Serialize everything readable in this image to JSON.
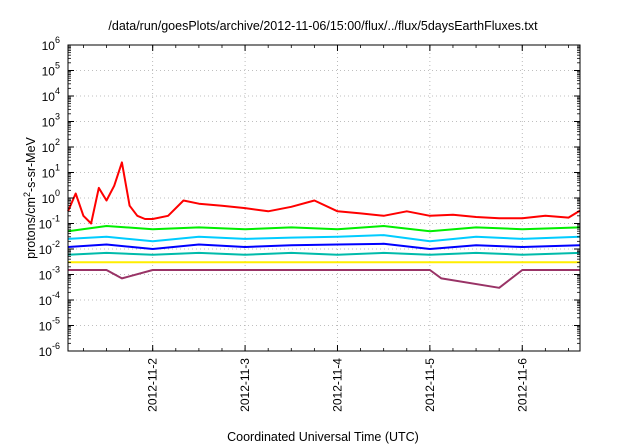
{
  "chart_data": {
    "type": "line",
    "title": "/data/run/goesPlots/archive/2012-11-06/15:00/flux/../flux/5daysEarthFluxes.txt",
    "xlabel": "Coordinated Universal Time (UTC)",
    "ylabel_parts": {
      "pre": "protons/cm",
      "sup": "2",
      "post": "-s-sr-MeV"
    },
    "y_scale": "log",
    "ylim": [
      1e-06,
      1000000
    ],
    "y_ticks": [
      {
        "base": "10",
        "exp": "6",
        "value": 1000000
      },
      {
        "base": "10",
        "exp": "5",
        "value": 100000
      },
      {
        "base": "10",
        "exp": "4",
        "value": 10000
      },
      {
        "base": "10",
        "exp": "3",
        "value": 1000
      },
      {
        "base": "10",
        "exp": "2",
        "value": 100
      },
      {
        "base": "10",
        "exp": "1",
        "value": 10
      },
      {
        "base": "10",
        "exp": "0",
        "value": 1
      },
      {
        "base": "10",
        "exp": "-1",
        "value": 0.1
      },
      {
        "base": "10",
        "exp": "-2",
        "value": 0.01
      },
      {
        "base": "10",
        "exp": "-3",
        "value": 0.001
      },
      {
        "base": "10",
        "exp": "-4",
        "value": 0.0001
      },
      {
        "base": "10",
        "exp": "-5",
        "value": 1e-05
      },
      {
        "base": "10",
        "exp": "-6",
        "value": 1e-06
      }
    ],
    "xlim": [
      "2012-11-01 02:00",
      "2012-11-06 15:00"
    ],
    "x_ticks": [
      "2012-11-2",
      "2012-11-3",
      "2012-11-4",
      "2012-11-5",
      "2012-11-6"
    ],
    "grid": true,
    "series": [
      {
        "color": "#ff0000",
        "x": [
          "2012-11-01 02:00",
          "2012-11-01 04:00",
          "2012-11-01 06:00",
          "2012-11-01 08:00",
          "2012-11-01 10:00",
          "2012-11-01 12:00",
          "2012-11-01 14:00",
          "2012-11-01 16:00",
          "2012-11-01 18:00",
          "2012-11-01 20:00",
          "2012-11-01 22:00",
          "2012-11-02 00:00",
          "2012-11-02 04:00",
          "2012-11-02 08:00",
          "2012-11-02 12:00",
          "2012-11-02 18:00",
          "2012-11-03 00:00",
          "2012-11-03 06:00",
          "2012-11-03 12:00",
          "2012-11-03 18:00",
          "2012-11-04 00:00",
          "2012-11-04 06:00",
          "2012-11-04 12:00",
          "2012-11-04 18:00",
          "2012-11-05 00:00",
          "2012-11-05 06:00",
          "2012-11-05 12:00",
          "2012-11-05 18:00",
          "2012-11-06 00:00",
          "2012-11-06 06:00",
          "2012-11-06 12:00",
          "2012-11-06 15:00"
        ],
        "values": [
          0.3,
          1.5,
          0.2,
          0.1,
          2.5,
          0.8,
          3,
          25,
          0.5,
          0.2,
          0.15,
          0.15,
          0.2,
          0.8,
          0.6,
          0.5,
          0.4,
          0.3,
          0.45,
          0.8,
          0.3,
          0.25,
          0.2,
          0.3,
          0.2,
          0.22,
          0.18,
          0.16,
          0.16,
          0.2,
          0.17,
          0.32
        ]
      },
      {
        "color": "#00ee00",
        "x": [
          "2012-11-01 02:00",
          "2012-11-01 12:00",
          "2012-11-02 00:00",
          "2012-11-02 12:00",
          "2012-11-03 00:00",
          "2012-11-03 12:00",
          "2012-11-04 00:00",
          "2012-11-04 12:00",
          "2012-11-05 00:00",
          "2012-11-05 12:00",
          "2012-11-06 00:00",
          "2012-11-06 15:00"
        ],
        "values": [
          0.05,
          0.08,
          0.06,
          0.07,
          0.06,
          0.07,
          0.06,
          0.08,
          0.05,
          0.07,
          0.06,
          0.07
        ]
      },
      {
        "color": "#00ccff",
        "x": [
          "2012-11-01 02:00",
          "2012-11-01 12:00",
          "2012-11-02 00:00",
          "2012-11-02 12:00",
          "2012-11-03 00:00",
          "2012-11-03 12:00",
          "2012-11-04 00:00",
          "2012-11-04 12:00",
          "2012-11-05 00:00",
          "2012-11-05 12:00",
          "2012-11-06 00:00",
          "2012-11-06 15:00"
        ],
        "values": [
          0.025,
          0.03,
          0.02,
          0.03,
          0.025,
          0.028,
          0.03,
          0.035,
          0.02,
          0.03,
          0.025,
          0.03
        ]
      },
      {
        "color": "#0000ff",
        "x": [
          "2012-11-01 02:00",
          "2012-11-01 12:00",
          "2012-11-02 00:00",
          "2012-11-02 12:00",
          "2012-11-03 00:00",
          "2012-11-03 12:00",
          "2012-11-04 00:00",
          "2012-11-04 12:00",
          "2012-11-05 00:00",
          "2012-11-05 12:00",
          "2012-11-06 00:00",
          "2012-11-06 15:00"
        ],
        "values": [
          0.012,
          0.015,
          0.01,
          0.015,
          0.012,
          0.014,
          0.015,
          0.016,
          0.01,
          0.014,
          0.012,
          0.014
        ]
      },
      {
        "color": "#00bbaa",
        "x": [
          "2012-11-01 02:00",
          "2012-11-01 12:00",
          "2012-11-02 00:00",
          "2012-11-02 12:00",
          "2012-11-03 00:00",
          "2012-11-03 12:00",
          "2012-11-04 00:00",
          "2012-11-04 12:00",
          "2012-11-05 00:00",
          "2012-11-05 12:00",
          "2012-11-06 00:00",
          "2012-11-06 15:00"
        ],
        "values": [
          0.006,
          0.007,
          0.006,
          0.007,
          0.006,
          0.007,
          0.006,
          0.007,
          0.006,
          0.007,
          0.006,
          0.007
        ]
      },
      {
        "color": "#ffee00",
        "x": [
          "2012-11-01 02:00",
          "2012-11-06 15:00"
        ],
        "values": [
          0.003,
          0.003
        ]
      },
      {
        "color": "#993366",
        "x": [
          "2012-11-01 02:00",
          "2012-11-01 12:00",
          "2012-11-01 16:00",
          "2012-11-02 00:00",
          "2012-11-03 00:00",
          "2012-11-04 00:00",
          "2012-11-05 00:00",
          "2012-11-05 03:00",
          "2012-11-05 18:00",
          "2012-11-06 00:00",
          "2012-11-06 15:00"
        ],
        "values": [
          0.0015,
          0.0015,
          0.0007,
          0.0015,
          0.0015,
          0.0015,
          0.0015,
          0.0007,
          0.0003,
          0.0015,
          0.0015
        ]
      }
    ]
  }
}
